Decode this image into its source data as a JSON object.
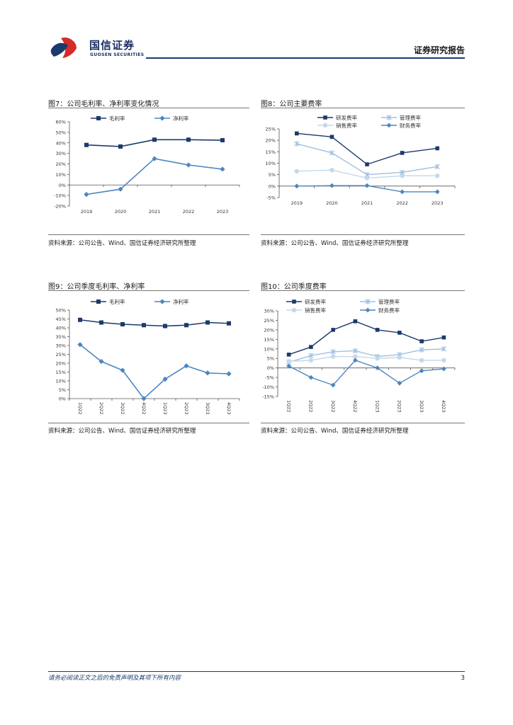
{
  "header": {
    "logo_cn": "国信证券",
    "logo_en": "GUOSEN SECURITIES",
    "report_type": "证券研究报告"
  },
  "figures": [
    {
      "title": "图7：公司毛利率、净利率变化情况",
      "source": "资料来源：公司公告、Wind、国信证券经济研究所整理"
    },
    {
      "title": "图8：公司主要费率",
      "source": "资料来源：公司公告、Wind、国信证券经济研究所整理"
    },
    {
      "title": "图9：公司季度毛利率、净利率",
      "source": "资料来源：公司公告、Wind、国信证券经济研究所整理"
    },
    {
      "title": "图10：公司季度费率",
      "source": "资料来源：公司公告、Wind、国信证券经济研究所整理"
    }
  ],
  "colors": {
    "dark_blue": "#1b3a6d",
    "mid_blue": "#4a86c0",
    "light_blue": "#9fc0e0",
    "lighter_blue": "#c4d8ec"
  },
  "chart_data": [
    {
      "type": "line",
      "title": "图7：公司毛利率、净利率变化情况",
      "categories": [
        "2019",
        "2020",
        "2021",
        "2022",
        "2023"
      ],
      "ylim": [
        -20,
        60
      ],
      "yticks": [
        -20,
        -10,
        0,
        10,
        20,
        30,
        40,
        50,
        60
      ],
      "ytick_labels": [
        "-20%",
        "-10%",
        "0%",
        "10%",
        "20%",
        "30%",
        "40%",
        "50%",
        "60%"
      ],
      "legend_position": "top",
      "series": [
        {
          "name": "毛利率",
          "values": [
            38,
            36.5,
            43,
            43,
            42.5
          ],
          "color": "#1b3a6d",
          "marker": "square"
        },
        {
          "name": "净利率",
          "values": [
            -9,
            -4,
            25,
            19,
            15
          ],
          "color": "#4a86c0",
          "marker": "diamond"
        }
      ]
    },
    {
      "type": "line",
      "title": "图8：公司主要费率",
      "categories": [
        "2019",
        "2020",
        "2021",
        "2022",
        "2023"
      ],
      "ylim": [
        -5,
        25
      ],
      "yticks": [
        -5,
        0,
        5,
        10,
        15,
        20,
        25
      ],
      "ytick_labels": [
        "-5%",
        "0%",
        "5%",
        "10%",
        "15%",
        "20%",
        "25%"
      ],
      "legend_position": "top",
      "series": [
        {
          "name": "研发费率",
          "values": [
            23,
            21.5,
            9.5,
            14.5,
            16.5
          ],
          "color": "#1b3a6d",
          "marker": "square"
        },
        {
          "name": "管理费率",
          "values": [
            18.5,
            14.5,
            5,
            6,
            8.5
          ],
          "color": "#9fc0e0",
          "marker": "x"
        },
        {
          "name": "销售费率",
          "values": [
            6.5,
            7,
            3.5,
            4.5,
            4.5
          ],
          "color": "#c4d8ec",
          "marker": "circle"
        },
        {
          "name": "财务费率",
          "values": [
            0,
            0.2,
            0.2,
            -2.5,
            -2.5
          ],
          "color": "#4a86c0",
          "marker": "diamond"
        }
      ]
    },
    {
      "type": "line",
      "title": "图9：公司季度毛利率、净利率",
      "categories": [
        "1Q22",
        "2Q22",
        "3Q22",
        "4Q22",
        "1Q23",
        "2Q23",
        "3Q23",
        "4Q23"
      ],
      "ylim": [
        0,
        50
      ],
      "yticks": [
        0,
        5,
        10,
        15,
        20,
        25,
        30,
        35,
        40,
        45,
        50
      ],
      "ytick_labels": [
        "0%",
        "5%",
        "10%",
        "15%",
        "20%",
        "25%",
        "30%",
        "35%",
        "40%",
        "45%",
        "50%"
      ],
      "legend_position": "top",
      "series": [
        {
          "name": "毛利率",
          "values": [
            44.5,
            43,
            42,
            41.5,
            41,
            41.5,
            43,
            42.5
          ],
          "color": "#1b3a6d",
          "marker": "square"
        },
        {
          "name": "净利率",
          "values": [
            30.5,
            21,
            16,
            0,
            11,
            18.5,
            14.5,
            14
          ],
          "color": "#4a86c0",
          "marker": "diamond"
        }
      ]
    },
    {
      "type": "line",
      "title": "图10：公司季度费率",
      "categories": [
        "1Q22",
        "2Q22",
        "3Q22",
        "4Q22",
        "1Q23",
        "2Q23",
        "3Q23",
        "4Q23"
      ],
      "ylim": [
        -15,
        30
      ],
      "yticks": [
        -15,
        -10,
        -5,
        0,
        5,
        10,
        15,
        20,
        25,
        30
      ],
      "ytick_labels": [
        "-15%",
        "-10%",
        "-5%",
        "0%",
        "5%",
        "10%",
        "15%",
        "20%",
        "25%",
        "30%"
      ],
      "legend_position": "top",
      "series": [
        {
          "name": "研发费率",
          "values": [
            7,
            11,
            20,
            24.5,
            20,
            18.5,
            14,
            16
          ],
          "color": "#1b3a6d",
          "marker": "square"
        },
        {
          "name": "管理费率",
          "values": [
            3,
            6.5,
            8.5,
            9,
            6,
            7,
            9.5,
            10
          ],
          "color": "#9fc0e0",
          "marker": "x"
        },
        {
          "name": "销售费率",
          "values": [
            3.5,
            4,
            6,
            6,
            5,
            5.5,
            4,
            4
          ],
          "color": "#c4d8ec",
          "marker": "circle"
        },
        {
          "name": "财务费率",
          "values": [
            1,
            -5,
            -9,
            4,
            0,
            -8,
            -1.5,
            -0.5
          ],
          "color": "#4a86c0",
          "marker": "diamond"
        }
      ]
    }
  ],
  "footer": {
    "disclaimer": "请务必阅读正文之后的免责声明及其项下所有内容",
    "page": "3"
  }
}
